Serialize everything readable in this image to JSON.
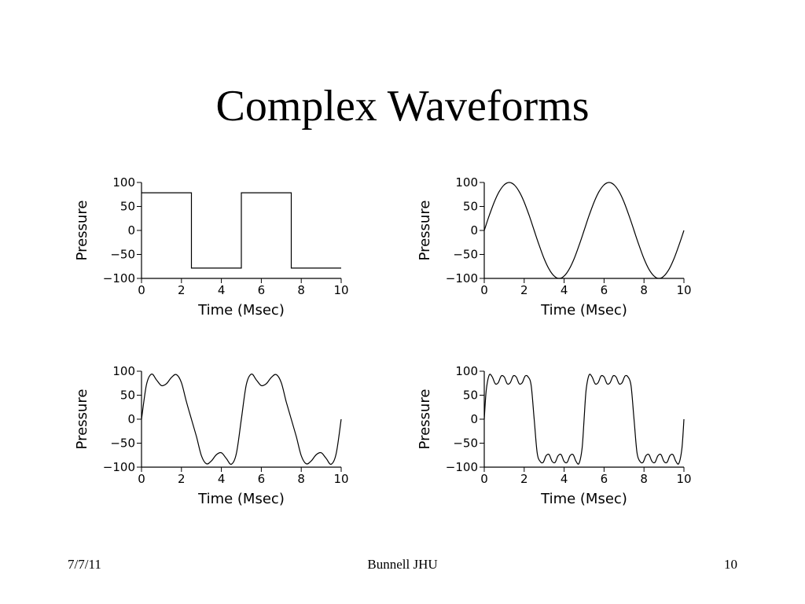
{
  "slide": {
    "title": "Complex Waveforms",
    "footer_date": "7/7/11",
    "footer_center": "Bunnell JHU",
    "footer_page": "10"
  },
  "chart_data": [
    {
      "type": "line",
      "xlabel": "Time (Msec)",
      "ylabel": "Pressure",
      "xlim": [
        0,
        10
      ],
      "ylim": [
        -100,
        100
      ],
      "xticks": [
        "0",
        "2",
        "4",
        "6",
        "8",
        "10"
      ],
      "yticks": [
        "100",
        "50",
        "0",
        "−50",
        "−100"
      ],
      "grid": false,
      "series": [
        {
          "x": [
            0,
            2.5,
            2.5,
            5,
            5,
            7.5,
            7.5,
            10
          ],
          "y": [
            78.5,
            78.5,
            -78.5,
            -78.5,
            78.5,
            78.5,
            -78.5,
            -78.5
          ]
        }
      ]
    },
    {
      "type": "line",
      "xlabel": "Time (Msec)",
      "ylabel": "Pressure",
      "xlim": [
        0,
        10
      ],
      "ylim": [
        -100,
        100
      ],
      "xticks": [
        "0",
        "2",
        "4",
        "6",
        "8",
        "10"
      ],
      "yticks": [
        "100",
        "50",
        "0",
        "−50",
        "−100"
      ],
      "grid": false,
      "series": [
        {
          "x": [
            0,
            0.25,
            0.5,
            0.75,
            1,
            1.25,
            1.5,
            1.75,
            2,
            2.25,
            2.5,
            2.75,
            3,
            3.25,
            3.5,
            3.75,
            4,
            4.25,
            4.5,
            4.75,
            5,
            5.25,
            5.5,
            5.75,
            6,
            6.25,
            6.5,
            6.75,
            7,
            7.25,
            7.5,
            7.75,
            8,
            8.25,
            8.5,
            8.75,
            9,
            9.25,
            9.5,
            9.75,
            10
          ],
          "y": [
            0,
            31,
            59,
            81,
            95,
            100,
            95,
            81,
            59,
            31,
            0,
            -31,
            -59,
            -81,
            -95,
            -100,
            -95,
            -81,
            -59,
            -31,
            0,
            31,
            59,
            81,
            95,
            100,
            95,
            81,
            59,
            31,
            0,
            -31,
            -59,
            -81,
            -95,
            -100,
            -95,
            -81,
            -59,
            -31,
            0
          ]
        }
      ]
    },
    {
      "type": "line",
      "xlabel": "Time (Msec)",
      "ylabel": "Pressure",
      "xlim": [
        0,
        10
      ],
      "ylim": [
        -100,
        100
      ],
      "xticks": [
        "0",
        "2",
        "4",
        "6",
        "8",
        "10"
      ],
      "yticks": [
        "100",
        "50",
        "0",
        "−50",
        "−100"
      ],
      "grid": false,
      "series": [
        {
          "x": [
            0,
            0.25,
            0.5,
            0.75,
            1,
            1.25,
            1.5,
            1.75,
            2,
            2.25,
            2.5,
            2.75,
            3,
            3.25,
            3.5,
            3.75,
            4,
            4.25,
            4.5,
            4.75,
            5,
            5.25,
            5.5,
            5.75,
            6,
            6.25,
            6.5,
            6.75,
            7,
            7.25,
            7.5,
            7.75,
            8,
            8.25,
            8.5,
            8.75,
            9,
            9.25,
            9.5,
            9.75,
            10
          ],
          "y": [
            0,
            72,
            94,
            82,
            70,
            74,
            87,
            93,
            76,
            36,
            0,
            -36,
            -76,
            -93,
            -87,
            -74,
            -70,
            -82,
            -94,
            -72,
            0,
            72,
            94,
            82,
            70,
            74,
            87,
            93,
            76,
            36,
            0,
            -36,
            -76,
            -93,
            -87,
            -74,
            -70,
            -82,
            -94,
            -72,
            0
          ]
        }
      ]
    },
    {
      "type": "line",
      "xlabel": "Time (Msec)",
      "ylabel": "Pressure",
      "xlim": [
        0,
        10
      ],
      "ylim": [
        -100,
        100
      ],
      "xticks": [
        "0",
        "2",
        "4",
        "6",
        "8",
        "10"
      ],
      "yticks": [
        "100",
        "50",
        "0",
        "−50",
        "−100"
      ],
      "grid": false,
      "series": [
        {
          "x": [
            0,
            0.1,
            0.25,
            0.4,
            0.55,
            0.7,
            0.85,
            1,
            1.15,
            1.3,
            1.45,
            1.6,
            1.75,
            1.9,
            2.05,
            2.2,
            2.35,
            2.5,
            2.65,
            2.8,
            2.95,
            3.1,
            3.25,
            3.4,
            3.55,
            3.7,
            3.85,
            4,
            4.15,
            4.3,
            4.45,
            4.6,
            4.75,
            4.9,
            5,
            5.1,
            5.25,
            5.4,
            5.55,
            5.7,
            5.85,
            6,
            6.15,
            6.3,
            6.45,
            6.6,
            6.75,
            6.9,
            7.05,
            7.2,
            7.35,
            7.5,
            7.65,
            7.8,
            7.95,
            8.1,
            8.25,
            8.4,
            8.55,
            8.7,
            8.85,
            9,
            9.15,
            9.3,
            9.45,
            9.6,
            9.75,
            9.9,
            10
          ],
          "y": [
            0,
            60,
            92,
            88,
            74,
            76,
            90,
            88,
            74,
            76,
            90,
            88,
            74,
            76,
            90,
            88,
            70,
            0,
            -70,
            -88,
            -90,
            -76,
            -74,
            -88,
            -90,
            -76,
            -74,
            -88,
            -90,
            -76,
            -74,
            -88,
            -92,
            -60,
            0,
            60,
            92,
            88,
            74,
            76,
            90,
            88,
            74,
            76,
            90,
            88,
            74,
            76,
            90,
            88,
            70,
            0,
            -70,
            -88,
            -90,
            -76,
            -74,
            -88,
            -90,
            -76,
            -74,
            -88,
            -90,
            -76,
            -74,
            -88,
            -92,
            -60,
            0
          ]
        }
      ]
    }
  ]
}
